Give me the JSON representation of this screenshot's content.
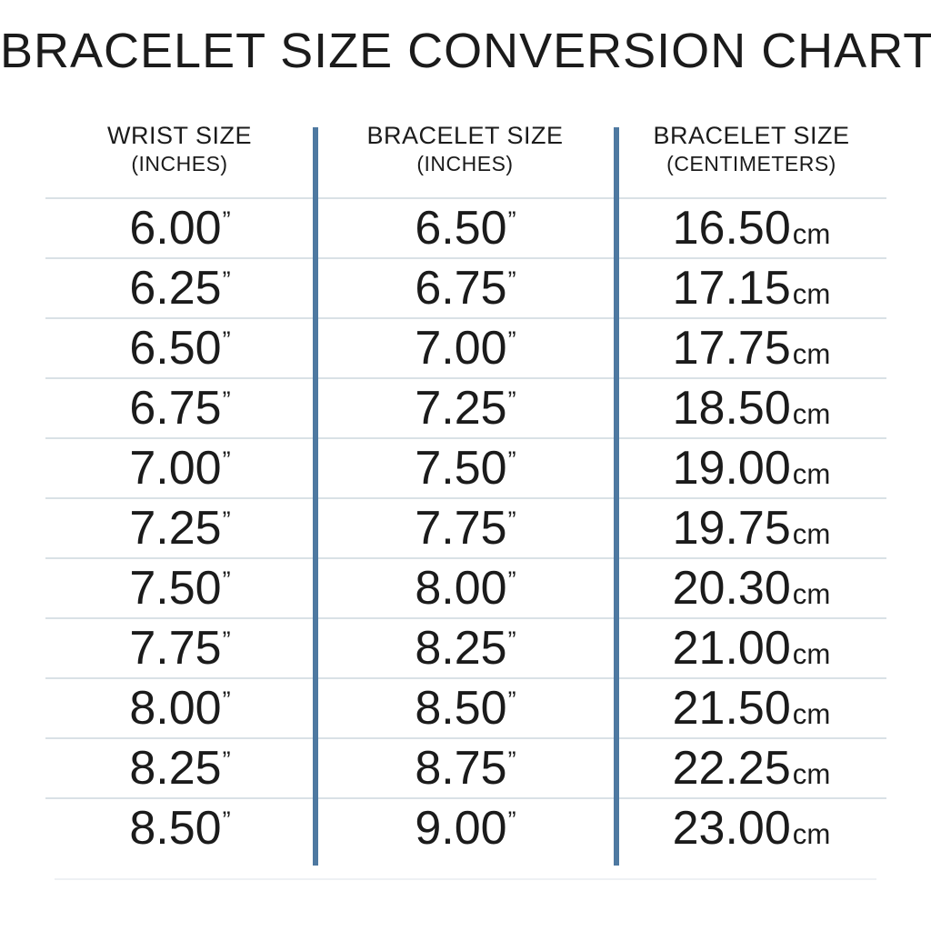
{
  "page": {
    "title": "BRACELET SIZE CONVERSION CHART"
  },
  "table": {
    "columns": [
      {
        "label": "WRIST SIZE",
        "sublabel": "(INCHES)"
      },
      {
        "label": "BRACELET SIZE",
        "sublabel": "(INCHES)"
      },
      {
        "label": "BRACELET SIZE",
        "sublabel": "(CENTIMETERS)"
      }
    ],
    "inch_mark": "”",
    "cm_suffix": "cm",
    "rows": [
      {
        "wrist_inches": "6.00",
        "bracelet_inches": "6.50",
        "bracelet_cm": "16.50"
      },
      {
        "wrist_inches": "6.25",
        "bracelet_inches": "6.75",
        "bracelet_cm": "17.15"
      },
      {
        "wrist_inches": "6.50",
        "bracelet_inches": "7.00",
        "bracelet_cm": "17.75"
      },
      {
        "wrist_inches": "6.75",
        "bracelet_inches": "7.25",
        "bracelet_cm": "18.50"
      },
      {
        "wrist_inches": "7.00",
        "bracelet_inches": "7.50",
        "bracelet_cm": "19.00"
      },
      {
        "wrist_inches": "7.25",
        "bracelet_inches": "7.75",
        "bracelet_cm": "19.75"
      },
      {
        "wrist_inches": "7.50",
        "bracelet_inches": "8.00",
        "bracelet_cm": "20.30"
      },
      {
        "wrist_inches": "7.75",
        "bracelet_inches": "8.25",
        "bracelet_cm": "21.00"
      },
      {
        "wrist_inches": "8.00",
        "bracelet_inches": "8.50",
        "bracelet_cm": "21.50"
      },
      {
        "wrist_inches": "8.25",
        "bracelet_inches": "8.75",
        "bracelet_cm": "22.25"
      },
      {
        "wrist_inches": "8.50",
        "bracelet_inches": "9.00",
        "bracelet_cm": "23.00"
      }
    ]
  },
  "colors": {
    "divider_blue": "#4e79a1",
    "row_line": "#d9e1e6",
    "text": "#1b1b1b",
    "background": "#ffffff"
  },
  "chart_data": {
    "type": "table",
    "title": "BRACELET SIZE CONVERSION CHART",
    "columns": [
      "WRIST SIZE (INCHES)",
      "BRACELET SIZE (INCHES)",
      "BRACELET SIZE (CENTIMETERS)"
    ],
    "rows": [
      [
        6.0,
        6.5,
        16.5
      ],
      [
        6.25,
        6.75,
        17.15
      ],
      [
        6.5,
        7.0,
        17.75
      ],
      [
        6.75,
        7.25,
        18.5
      ],
      [
        7.0,
        7.5,
        19.0
      ],
      [
        7.25,
        7.75,
        19.75
      ],
      [
        7.5,
        8.0,
        20.3
      ],
      [
        7.75,
        8.25,
        21.0
      ],
      [
        8.0,
        8.5,
        21.5
      ],
      [
        8.25,
        8.75,
        22.25
      ],
      [
        8.5,
        9.0,
        23.0
      ]
    ]
  }
}
